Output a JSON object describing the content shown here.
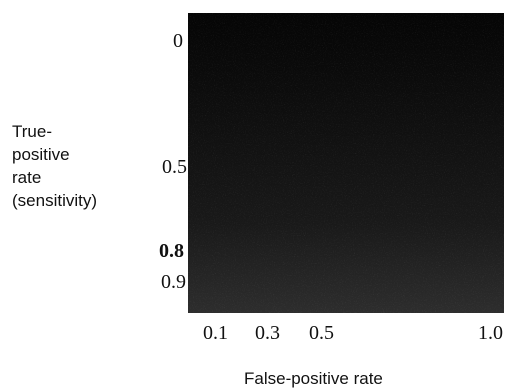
{
  "chart_data": {
    "type": "heatmap",
    "title": "",
    "xlabel": "False-positive rate",
    "ylabel_lines": [
      "True-",
      "positive",
      "rate",
      "(sensitivity)"
    ],
    "x_ticks": [
      {
        "value": 0.1,
        "label": "0.1"
      },
      {
        "value": 0.3,
        "label": "0.3"
      },
      {
        "value": 0.5,
        "label": "0.5"
      },
      {
        "value": 1.0,
        "label": "1.0"
      }
    ],
    "y_ticks": [
      {
        "value": 0,
        "label": "0"
      },
      {
        "value": 0.5,
        "label": "0.5"
      },
      {
        "value": 0.8,
        "label": "0.8",
        "bold": true
      },
      {
        "value": 0.9,
        "label": "0.9"
      }
    ],
    "xlim": [
      0,
      1
    ],
    "ylim": [
      0,
      1
    ],
    "y_axis_inverted": true,
    "grid": false,
    "colors": {
      "plot_fill": "#050505",
      "noise": "#9a9a9a",
      "text": "#111111"
    }
  }
}
